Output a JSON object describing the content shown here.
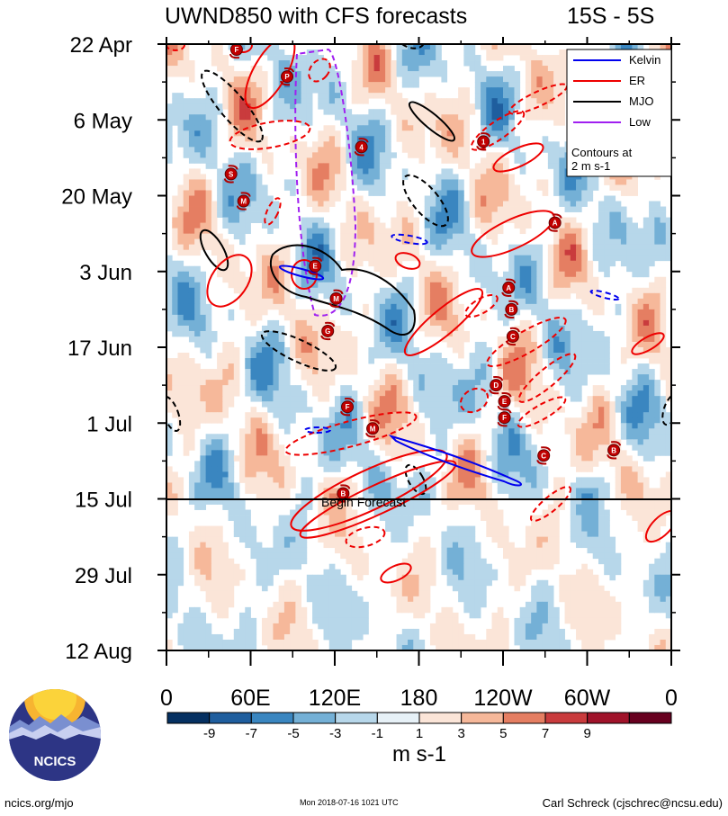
{
  "chart_data": {
    "type": "heatmap",
    "title": "UWND850 with CFS forecasts",
    "region": "15S - 5S",
    "x_ticks": [
      "0",
      "60E",
      "120E",
      "180",
      "120W",
      "60W",
      "0"
    ],
    "x_range_deg_east": [
      0,
      360
    ],
    "y_ticks": [
      "22 Apr",
      "6 May",
      "20 May",
      "3 Jun",
      "17 Jun",
      "1 Jul",
      "15 Jul",
      "29 Jul",
      "12 Aug"
    ],
    "y_range_days_since_22Apr": [
      0,
      112
    ],
    "forecast_start_label": "Begin Forecast",
    "forecast_start_day": 84,
    "legend": [
      {
        "name": "Kelvin",
        "color": "#0000ee"
      },
      {
        "name": "ER",
        "color": "#ee0000"
      },
      {
        "name": "MJO",
        "color": "#000000"
      },
      {
        "name": "Low",
        "color": "#a020f0"
      }
    ],
    "contour_note_line1": "Contours at",
    "contour_note_line2": "2 m s-1",
    "colorbar": {
      "levels": [
        "-9",
        "-7",
        "-5",
        "-3",
        "-1",
        "1",
        "3",
        "5",
        "7",
        "9"
      ],
      "colors": [
        "#053061",
        "#1f5e9e",
        "#3a86c0",
        "#74b0d6",
        "#b7d7ea",
        "#e7f1f7",
        "#fbe5d8",
        "#f6b89a",
        "#e57e62",
        "#c93b3d",
        "#a0132a",
        "#67001f"
      ],
      "units": "m s-1"
    },
    "tc_markers": [
      {
        "letter": "F",
        "lon": 50,
        "day": 1
      },
      {
        "letter": "P",
        "lon": 86,
        "day": 6
      },
      {
        "letter": "4",
        "lon": 139,
        "day": 19
      },
      {
        "letter": "1",
        "lon": 226,
        "day": 18
      },
      {
        "letter": "S",
        "lon": 46,
        "day": 24
      },
      {
        "letter": "M",
        "lon": 55,
        "day": 29
      },
      {
        "letter": "A",
        "lon": 277,
        "day": 33
      },
      {
        "letter": "E",
        "lon": 106,
        "day": 41
      },
      {
        "letter": "A",
        "lon": 244,
        "day": 45
      },
      {
        "letter": "M",
        "lon": 121,
        "day": 47
      },
      {
        "letter": "B",
        "lon": 246,
        "day": 49
      },
      {
        "letter": "G",
        "lon": 115,
        "day": 53
      },
      {
        "letter": "C",
        "lon": 247,
        "day": 54
      },
      {
        "letter": "D",
        "lon": 235,
        "day": 63
      },
      {
        "letter": "E",
        "lon": 241,
        "day": 66
      },
      {
        "letter": "F",
        "lon": 129,
        "day": 67
      },
      {
        "letter": "F",
        "lon": 241,
        "day": 69
      },
      {
        "letter": "M",
        "lon": 147,
        "day": 71
      },
      {
        "letter": "C",
        "lon": 269,
        "day": 76
      },
      {
        "letter": "B",
        "lon": 319,
        "day": 75
      },
      {
        "letter": "B",
        "lon": 126,
        "day": 83
      }
    ]
  },
  "footer": {
    "left": "ncics.org/mjo",
    "center": "Mon 2018-07-16 1021 UTC",
    "right": "Carl Schreck (cjschrec@ncsu.edu)"
  },
  "logo": {
    "text": "NCICS"
  }
}
